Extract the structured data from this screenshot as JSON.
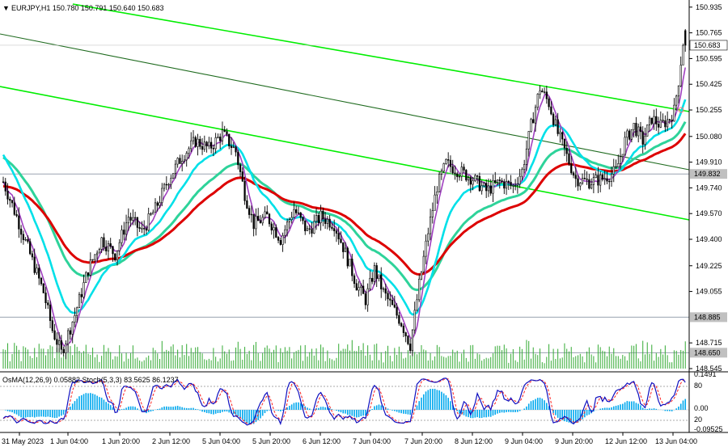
{
  "header": {
    "symbol_arrow": "▼",
    "title": "EURJPY,H1  150.780 150.791 150.640 150.683"
  },
  "main_price_axis": [
    {
      "label": "150.935",
      "value": 150.935
    },
    {
      "label": "150.765",
      "value": 150.765
    },
    {
      "label": "150.595",
      "value": 150.595
    },
    {
      "label": "150.425",
      "value": 150.425
    },
    {
      "label": "150.255",
      "value": 150.255
    },
    {
      "label": "150.080",
      "value": 150.08
    },
    {
      "label": "149.910",
      "value": 149.91
    },
    {
      "label": "149.740",
      "value": 149.74
    },
    {
      "label": "149.570",
      "value": 149.57
    },
    {
      "label": "149.400",
      "value": 149.4
    },
    {
      "label": "149.225",
      "value": 149.225
    },
    {
      "label": "149.055",
      "value": 149.055
    },
    {
      "label": "148.715",
      "value": 148.715
    },
    {
      "label": "148.545",
      "value": 148.545
    }
  ],
  "price_tags": [
    {
      "label": "150.683",
      "value": 150.683,
      "bg": "#ffffff",
      "fg": "#000000"
    },
    {
      "label": "149.832",
      "value": 149.832,
      "bg": "#c0c0c0",
      "fg": "#000000"
    },
    {
      "label": "148.885",
      "value": 148.885,
      "bg": "#c0c0c0",
      "fg": "#000000"
    },
    {
      "label": "148.650",
      "value": 148.65,
      "bg": "#c0c0c0",
      "fg": "#000000"
    }
  ],
  "oscillator": {
    "title": "OsMA(12,26,9) 0.05882  Stoch(5,3,3) 83.5625 86.1237",
    "axis": [
      {
        "label": "0.1491",
        "pos": 0.0
      },
      {
        "label": "80",
        "pos": 0.2
      },
      {
        "label": "0.00",
        "pos": 0.6
      },
      {
        "label": "20",
        "pos": 0.8
      },
      {
        "label": "-0.09525",
        "pos": 0.97
      }
    ]
  },
  "time_axis": [
    "31 May 2023",
    "1 Jun 04:00",
    "1 Jun 20:00",
    "2 Jun 12:00",
    "5 Jun 04:00",
    "5 Jun 20:00",
    "6 Jun 12:00",
    "7 Jun 04:00",
    "7 Jun 20:00",
    "8 Jun 12:00",
    "9 Jun 04:00",
    "9 Jun 20:00",
    "12 Jun 12:00",
    "13 Jun 04:00"
  ],
  "colors": {
    "channel": "#00ff00",
    "ema_red": "#dd0000",
    "ema_cyan": "#00e5e5",
    "ema_aqua": "#33dd99",
    "fast_ma": "#a040c0",
    "candle_up": "#000000",
    "candle_down": "#000000",
    "volume": "#22aa22",
    "osma": "#00aaee",
    "stoch_main": "#0000cc",
    "stoch_signal": "#ff0000"
  },
  "chart_data": {
    "type": "candlestick",
    "symbol": "EURJPY",
    "timeframe": "H1",
    "ylim": [
      148.545,
      150.95
    ],
    "key_levels": [
      149.832,
      148.885,
      148.65
    ],
    "last_price": 150.683,
    "path_points": [
      [
        0,
        149.78
      ],
      [
        6,
        149.55
      ],
      [
        12,
        149.3
      ],
      [
        18,
        149.05
      ],
      [
        22,
        148.8
      ],
      [
        26,
        148.65
      ],
      [
        32,
        148.9
      ],
      [
        38,
        149.2
      ],
      [
        44,
        149.4
      ],
      [
        50,
        149.3
      ],
      [
        56,
        149.55
      ],
      [
        62,
        149.45
      ],
      [
        68,
        149.6
      ],
      [
        74,
        149.8
      ],
      [
        80,
        149.95
      ],
      [
        86,
        150.05
      ],
      [
        92,
        150.0
      ],
      [
        98,
        150.1
      ],
      [
        104,
        149.98
      ],
      [
        108,
        149.7
      ],
      [
        112,
        149.5
      ],
      [
        118,
        149.55
      ],
      [
        124,
        149.4
      ],
      [
        130,
        149.6
      ],
      [
        136,
        149.45
      ],
      [
        142,
        149.55
      ],
      [
        148,
        149.5
      ],
      [
        152,
        149.35
      ],
      [
        158,
        149.1
      ],
      [
        162,
        149.0
      ],
      [
        166,
        149.2
      ],
      [
        170,
        149.05
      ],
      [
        174,
        148.95
      ],
      [
        178,
        148.85
      ],
      [
        182,
        148.7
      ],
      [
        186,
        149.1
      ],
      [
        190,
        149.45
      ],
      [
        194,
        149.75
      ],
      [
        198,
        149.9
      ],
      [
        204,
        149.85
      ],
      [
        210,
        149.8
      ],
      [
        216,
        149.72
      ],
      [
        222,
        149.78
      ],
      [
        228,
        149.75
      ],
      [
        232,
        149.85
      ],
      [
        236,
        150.15
      ],
      [
        240,
        150.4
      ],
      [
        244,
        150.3
      ],
      [
        248,
        150.1
      ],
      [
        252,
        149.95
      ],
      [
        256,
        149.8
      ],
      [
        262,
        149.78
      ],
      [
        268,
        149.8
      ],
      [
        274,
        149.85
      ],
      [
        278,
        150.05
      ],
      [
        282,
        150.15
      ],
      [
        286,
        150.05
      ],
      [
        290,
        150.2
      ],
      [
        294,
        150.15
      ],
      [
        298,
        150.2
      ],
      [
        300,
        150.25
      ],
      [
        302,
        150.45
      ],
      [
        304,
        150.7
      ],
      [
        306,
        150.68
      ]
    ]
  }
}
